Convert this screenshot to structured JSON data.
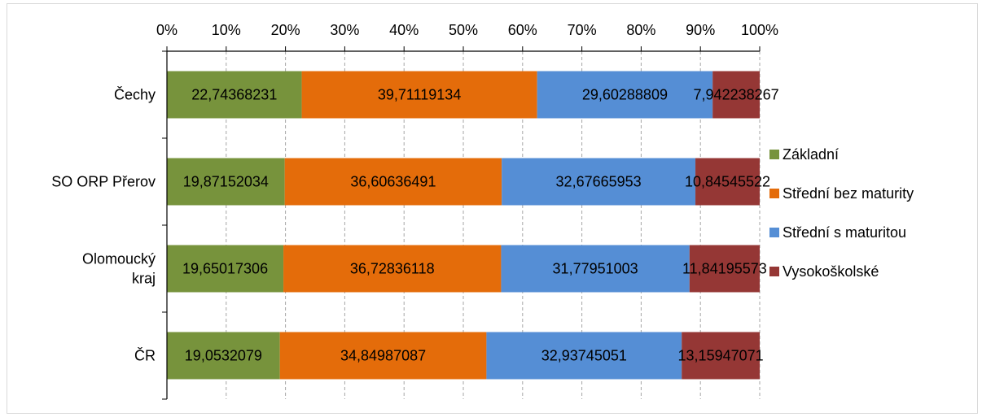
{
  "chart_data": {
    "type": "bar",
    "orientation": "horizontal",
    "stacked": "percent",
    "categories": [
      "Čechy",
      "SO ORP Přerov",
      "Olomoucký kraj",
      "ČR"
    ],
    "category_lines": [
      [
        "Čechy"
      ],
      [
        "SO ORP Přerov"
      ],
      [
        "Olomoucký",
        "kraj"
      ],
      [
        "ČR"
      ]
    ],
    "series": [
      {
        "name": "Základní",
        "color": "#77933c",
        "values": [
          22.74368231,
          19.87152034,
          19.65017306,
          19.0532079
        ],
        "labels": [
          "22,74368231",
          "19,87152034",
          "19,65017306",
          "19,0532079"
        ]
      },
      {
        "name": "Střední bez maturity",
        "color": "#e46c0a",
        "values": [
          39.71119134,
          36.60636491,
          36.72836118,
          34.84987087
        ],
        "labels": [
          "39,71119134",
          "36,60636491",
          "36,72836118",
          "34,84987087"
        ]
      },
      {
        "name": "Střední s maturitou",
        "color": "#558ed5",
        "values": [
          29.60288809,
          32.67665953,
          31.77951003,
          32.93745051
        ],
        "labels": [
          "29,60288809",
          "32,67665953",
          "31,77951003",
          "32,93745051"
        ]
      },
      {
        "name": "Vysokoškolské",
        "color": "#953735",
        "values": [
          7.942238267,
          10.84545522,
          11.84195573,
          13.15947071
        ],
        "labels": [
          "7,942238267",
          "10,84545522",
          "11,84195573",
          "13,15947071"
        ]
      }
    ],
    "x_ticks": [
      "0%",
      "10%",
      "20%",
      "30%",
      "40%",
      "50%",
      "60%",
      "70%",
      "80%",
      "90%",
      "100%"
    ],
    "xlim": [
      0,
      100
    ],
    "grid": "vertical-dashed",
    "legend_position": "right"
  }
}
